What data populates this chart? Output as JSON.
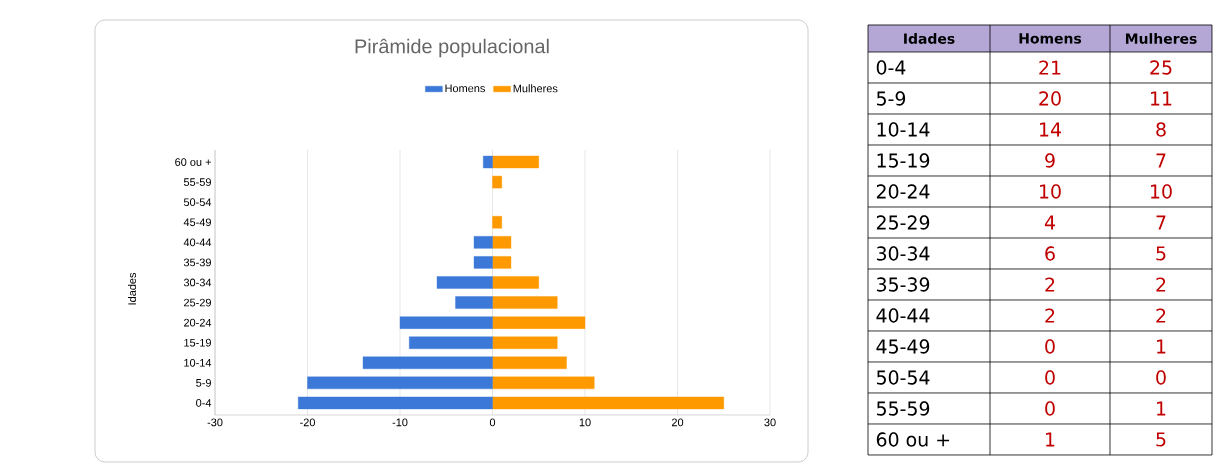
{
  "chart_data": [
    {
      "type": "bar",
      "orientation": "horizontal",
      "stacked": true,
      "title": "Pirâmide populacional",
      "ylabel": "Idades",
      "categories": [
        "60 ou +",
        "55-59",
        "50-54",
        "45-49",
        "40-44",
        "35-39",
        "30-34",
        "25-29",
        "20-24",
        "15-19",
        "10-14",
        "5-9",
        "0-4"
      ],
      "series": [
        {
          "name": "Homens",
          "color": "#3c78d8",
          "values": [
            -1,
            0,
            0,
            0,
            -2,
            -2,
            -6,
            -4,
            -10,
            -9,
            -14,
            -20,
            -21
          ]
        },
        {
          "name": "Mulheres",
          "color": "#ff9900",
          "values": [
            5,
            1,
            0,
            1,
            2,
            2,
            5,
            7,
            10,
            7,
            8,
            11,
            25
          ]
        }
      ],
      "xlim": [
        -30,
        30
      ],
      "xticks": [
        -30,
        -20,
        -10,
        0,
        10,
        20,
        30
      ],
      "grid": "x",
      "legend": "top"
    },
    {
      "type": "other",
      "ylabel": "Idades",
      "data_labels": true,
      "categories": [
        "0-4",
        "5-9",
        "10-14",
        "15-19",
        "20-24",
        "25-29",
        "30-34",
        "35-39",
        "40-44",
        "45-49",
        "50-54",
        "55-59",
        "60 ou +"
      ],
      "series": [
        {
          "name": "Homens",
          "values": [
            21,
            20,
            14,
            9,
            10,
            4,
            6,
            2,
            2,
            0,
            0,
            0,
            1
          ]
        },
        {
          "name": "Mulheres",
          "values": [
            25,
            11,
            8,
            7,
            10,
            7,
            5,
            2,
            2,
            1,
            0,
            1,
            5
          ]
        }
      ]
    }
  ]
}
